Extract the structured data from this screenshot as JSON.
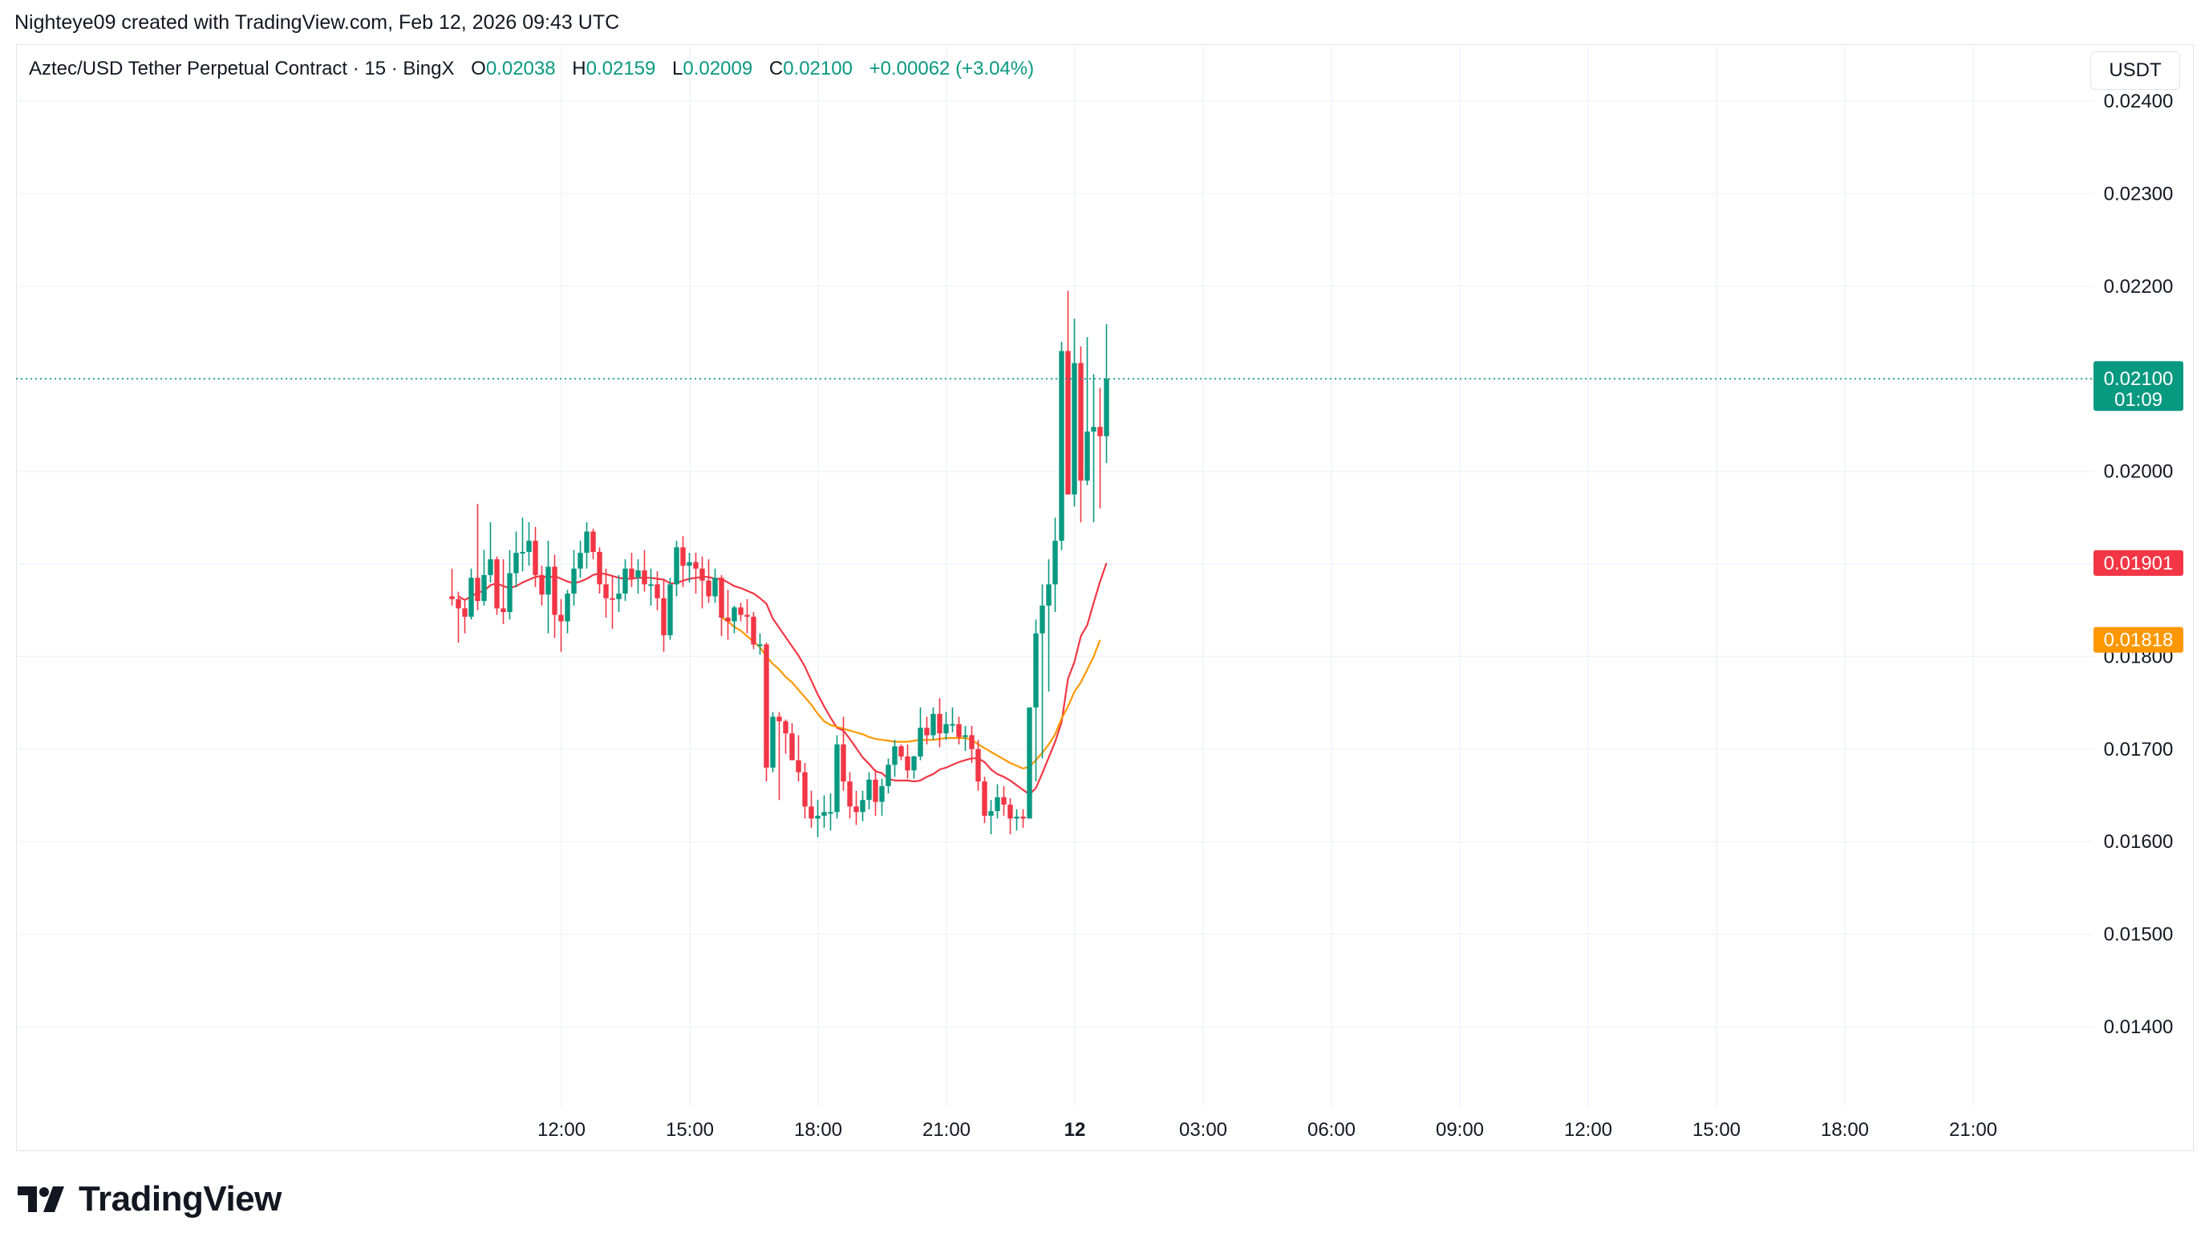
{
  "attribution": "Nighteye09 created with TradingView.com, Feb 12, 2026 09:43 UTC",
  "legend": {
    "symbol": "Aztec/USD Tether Perpetual Contract · 15 · BingX",
    "open_label": "O",
    "open": "0.02038",
    "high_label": "H",
    "high": "0.02159",
    "low_label": "L",
    "low": "0.02009",
    "close_label": "C",
    "close": "0.02100",
    "change": "+0.00062 (+3.04%)"
  },
  "currency": "USDT",
  "brand": "TradingView",
  "colors": {
    "up": "#089981",
    "down": "#f23645",
    "ema_fast": "#f23645",
    "ema_slow": "#ff9800",
    "grid": "#f0f3fa",
    "text": "#131722"
  },
  "chart_data": {
    "type": "candlestick",
    "interval_minutes": 15,
    "ylim": [
      0.0132,
      0.0244
    ],
    "y_ticks": [
      "0.02400",
      "0.02300",
      "0.02200",
      "0.02100",
      "0.02000",
      "0.01900",
      "0.01800",
      "0.01700",
      "0.01600",
      "0.01500",
      "0.01400"
    ],
    "x_tick_labels": [
      "12:00",
      "15:00",
      "18:00",
      "21:00",
      "12",
      "03:00",
      "06:00",
      "09:00",
      "12:00",
      "15:00",
      "18:00",
      "21:00"
    ],
    "last_price_label": {
      "price": "0.02100",
      "countdown": "01:09"
    },
    "ema_labels": [
      {
        "value": "0.01901",
        "color": "#f23645"
      },
      {
        "value": "0.01818",
        "color": "#ff9800"
      }
    ],
    "candles": [
      [
        0.01865,
        0.01895,
        0.01855,
        0.01862
      ],
      [
        0.01862,
        0.0187,
        0.01815,
        0.01852
      ],
      [
        0.01852,
        0.01862,
        0.01825,
        0.01843
      ],
      [
        0.01843,
        0.01895,
        0.0184,
        0.01885
      ],
      [
        0.01885,
        0.01965,
        0.0185,
        0.0186
      ],
      [
        0.0186,
        0.01915,
        0.01855,
        0.01888
      ],
      [
        0.01888,
        0.01945,
        0.0188,
        0.01905
      ],
      [
        0.01905,
        0.01908,
        0.01845,
        0.01852
      ],
      [
        0.01852,
        0.01905,
        0.01835,
        0.01848
      ],
      [
        0.01848,
        0.01915,
        0.0184,
        0.0189
      ],
      [
        0.0189,
        0.01935,
        0.01875,
        0.01912
      ],
      [
        0.01912,
        0.0195,
        0.01892,
        0.01913
      ],
      [
        0.01913,
        0.01945,
        0.01898,
        0.01925
      ],
      [
        0.01925,
        0.0194,
        0.01875,
        0.01888
      ],
      [
        0.01888,
        0.01898,
        0.01855,
        0.01867
      ],
      [
        0.01867,
        0.01925,
        0.01825,
        0.01897
      ],
      [
        0.01897,
        0.0191,
        0.0182,
        0.01845
      ],
      [
        0.01845,
        0.01862,
        0.01805,
        0.01838
      ],
      [
        0.01838,
        0.01872,
        0.01825,
        0.01868
      ],
      [
        0.01868,
        0.01915,
        0.01855,
        0.01895
      ],
      [
        0.01895,
        0.01925,
        0.01885,
        0.01912
      ],
      [
        0.01912,
        0.01945,
        0.01895,
        0.01935
      ],
      [
        0.01935,
        0.01938,
        0.01905,
        0.01913
      ],
      [
        0.01913,
        0.01918,
        0.01868,
        0.01878
      ],
      [
        0.01878,
        0.01895,
        0.01842,
        0.01863
      ],
      [
        0.01863,
        0.01888,
        0.0183,
        0.01862
      ],
      [
        0.01862,
        0.01888,
        0.01848,
        0.01868
      ],
      [
        0.01868,
        0.01905,
        0.0186,
        0.01895
      ],
      [
        0.01895,
        0.01912,
        0.01875,
        0.01885
      ],
      [
        0.01885,
        0.01905,
        0.01868,
        0.01893
      ],
      [
        0.01893,
        0.01915,
        0.0187,
        0.01878
      ],
      [
        0.01878,
        0.01895,
        0.01855,
        0.01878
      ],
      [
        0.01878,
        0.01892,
        0.0185,
        0.01863
      ],
      [
        0.01863,
        0.01882,
        0.01805,
        0.01823
      ],
      [
        0.01823,
        0.01885,
        0.01818,
        0.01878
      ],
      [
        0.01878,
        0.01925,
        0.01865,
        0.01918
      ],
      [
        0.01918,
        0.0193,
        0.01875,
        0.01898
      ],
      [
        0.01898,
        0.01912,
        0.0188,
        0.01902
      ],
      [
        0.01902,
        0.01912,
        0.01868,
        0.01895
      ],
      [
        0.01895,
        0.01908,
        0.01852,
        0.01882
      ],
      [
        0.01882,
        0.01905,
        0.01858,
        0.01865
      ],
      [
        0.01865,
        0.01895,
        0.01858,
        0.01885
      ],
      [
        0.01885,
        0.01888,
        0.01822,
        0.01842
      ],
      [
        0.01842,
        0.01872,
        0.01818,
        0.01838
      ],
      [
        0.01838,
        0.01855,
        0.01825,
        0.01853
      ],
      [
        0.01853,
        0.01858,
        0.01838,
        0.01845
      ],
      [
        0.01845,
        0.01862,
        0.01825,
        0.01843
      ],
      [
        0.01843,
        0.01848,
        0.01808,
        0.01813
      ],
      [
        0.01813,
        0.01825,
        0.01802,
        0.01813
      ],
      [
        0.01813,
        0.01815,
        0.01665,
        0.0168
      ],
      [
        0.0168,
        0.0174,
        0.01675,
        0.01735
      ],
      [
        0.01735,
        0.0174,
        0.01645,
        0.0173
      ],
      [
        0.0173,
        0.01732,
        0.01695,
        0.01717
      ],
      [
        0.01717,
        0.01728,
        0.01688,
        0.01688
      ],
      [
        0.01688,
        0.01715,
        0.01665,
        0.01675
      ],
      [
        0.01675,
        0.01685,
        0.01625,
        0.01638
      ],
      [
        0.01638,
        0.01655,
        0.01615,
        0.01625
      ],
      [
        0.01625,
        0.01645,
        0.01605,
        0.01628
      ],
      [
        0.01628,
        0.0165,
        0.01615,
        0.01632
      ],
      [
        0.01632,
        0.01652,
        0.01612,
        0.01632
      ],
      [
        0.01632,
        0.01715,
        0.01625,
        0.01705
      ],
      [
        0.01705,
        0.01735,
        0.01655,
        0.01665
      ],
      [
        0.01665,
        0.01675,
        0.01625,
        0.01638
      ],
      [
        0.01638,
        0.01655,
        0.01618,
        0.01632
      ],
      [
        0.01632,
        0.01655,
        0.01622,
        0.01645
      ],
      [
        0.01645,
        0.01675,
        0.01635,
        0.01667
      ],
      [
        0.01667,
        0.01678,
        0.01628,
        0.01643
      ],
      [
        0.01643,
        0.01668,
        0.01628,
        0.0166
      ],
      [
        0.0166,
        0.0169,
        0.01652,
        0.01683
      ],
      [
        0.01683,
        0.0171,
        0.0167,
        0.01703
      ],
      [
        0.01703,
        0.01705,
        0.01688,
        0.01692
      ],
      [
        0.01692,
        0.01705,
        0.01668,
        0.01677
      ],
      [
        0.01677,
        0.01693,
        0.01668,
        0.01692
      ],
      [
        0.01692,
        0.01745,
        0.01688,
        0.01723
      ],
      [
        0.01723,
        0.01735,
        0.01705,
        0.01715
      ],
      [
        0.01715,
        0.01745,
        0.0171,
        0.01738
      ],
      [
        0.01738,
        0.01755,
        0.01702,
        0.01717
      ],
      [
        0.01717,
        0.0174,
        0.0171,
        0.01727
      ],
      [
        0.01727,
        0.01745,
        0.01718,
        0.01727
      ],
      [
        0.01727,
        0.01735,
        0.01705,
        0.01713
      ],
      [
        0.01713,
        0.01725,
        0.01698,
        0.01715
      ],
      [
        0.01715,
        0.01725,
        0.01685,
        0.017
      ],
      [
        0.017,
        0.0171,
        0.01655,
        0.01665
      ],
      [
        0.01665,
        0.0167,
        0.0162,
        0.01628
      ],
      [
        0.01628,
        0.01645,
        0.01608,
        0.01633
      ],
      [
        0.01633,
        0.01662,
        0.01625,
        0.01648
      ],
      [
        0.01648,
        0.0166,
        0.01628,
        0.0164
      ],
      [
        0.0164,
        0.01647,
        0.01608,
        0.01625
      ],
      [
        0.01625,
        0.01635,
        0.01612,
        0.01627
      ],
      [
        0.01627,
        0.01635,
        0.01615,
        0.01625
      ],
      [
        0.01625,
        0.01745,
        0.01625,
        0.01745
      ],
      [
        0.01745,
        0.0184,
        0.01665,
        0.01825
      ],
      [
        0.01825,
        0.01878,
        0.0169,
        0.01855
      ],
      [
        0.01855,
        0.01905,
        0.01762,
        0.01878
      ],
      [
        0.01878,
        0.0195,
        0.01848,
        0.01925
      ],
      [
        0.01925,
        0.0214,
        0.01915,
        0.0213
      ],
      [
        0.0213,
        0.02195,
        0.0198,
        0.01975
      ],
      [
        0.01975,
        0.02165,
        0.01962,
        0.02117
      ],
      [
        0.02117,
        0.02135,
        0.01945,
        0.0199
      ],
      [
        0.0199,
        0.02145,
        0.01985,
        0.02043
      ],
      [
        0.02043,
        0.02105,
        0.01945,
        0.02048
      ],
      [
        0.02048,
        0.0209,
        0.0196,
        0.02038
      ],
      [
        0.02038,
        0.02159,
        0.02009,
        0.021
      ]
    ],
    "ema_fast": {
      "start_index": 1,
      "values": [
        0.01865,
        0.01861,
        0.01865,
        0.01869,
        0.01871,
        0.01877,
        0.01879,
        0.01876,
        0.01874,
        0.01876,
        0.0188,
        0.01883,
        0.01886,
        0.01887,
        0.01885,
        0.01887,
        0.01884,
        0.01881,
        0.01879,
        0.01881,
        0.01884,
        0.01888,
        0.0189,
        0.01889,
        0.01887,
        0.01885,
        0.01884,
        0.01884,
        0.01885,
        0.01885,
        0.01885,
        0.01884,
        0.01883,
        0.01879,
        0.01879,
        0.01882,
        0.01884,
        0.01885,
        0.01886,
        0.01886,
        0.01884,
        0.01884,
        0.0188,
        0.01876,
        0.01874,
        0.01871,
        0.01868,
        0.01863,
        0.01857,
        0.01841,
        0.01831,
        0.01821,
        0.01811,
        0.01801,
        0.01789,
        0.01774,
        0.01759,
        0.01746,
        0.01734,
        0.01723,
        0.0172,
        0.01711,
        0.01701,
        0.01691,
        0.01684,
        0.01676,
        0.01674,
        0.01668,
        0.01666,
        0.01666,
        0.01666,
        0.01665,
        0.01666,
        0.0167,
        0.01673,
        0.01678,
        0.0168,
        0.01683,
        0.01686,
        0.01688,
        0.0169,
        0.0169,
        0.01686,
        0.01678,
        0.01673,
        0.0167,
        0.01666,
        0.01661,
        0.01656,
        0.01651,
        0.01658,
        0.01674,
        0.01691,
        0.01708,
        0.01729,
        0.01776,
        0.01794,
        0.01822,
        0.01834,
        0.01858,
        0.01881,
        0.01901
      ]
    },
    "ema_slow": {
      "start_index": 42,
      "values": [
        0.01842,
        0.01838,
        0.01832,
        0.01828,
        0.01822,
        0.01816,
        0.0181,
        0.018,
        0.01792,
        0.01786,
        0.01778,
        0.01772,
        0.01764,
        0.01756,
        0.01748,
        0.01738,
        0.0173,
        0.01726,
        0.01724,
        0.01722,
        0.0172,
        0.01718,
        0.01716,
        0.01713,
        0.01711,
        0.0171,
        0.01709,
        0.01708,
        0.01708,
        0.01708,
        0.01709,
        0.0171,
        0.0171,
        0.0171,
        0.01711,
        0.01712,
        0.01712,
        0.01712,
        0.01712,
        0.0171,
        0.01705,
        0.01701,
        0.01697,
        0.01693,
        0.01689,
        0.01685,
        0.01682,
        0.01679,
        0.01681,
        0.01688,
        0.01696,
        0.01705,
        0.01716,
        0.01733,
        0.01746,
        0.01762,
        0.01772,
        0.01786,
        0.018,
        0.01818
      ]
    }
  }
}
